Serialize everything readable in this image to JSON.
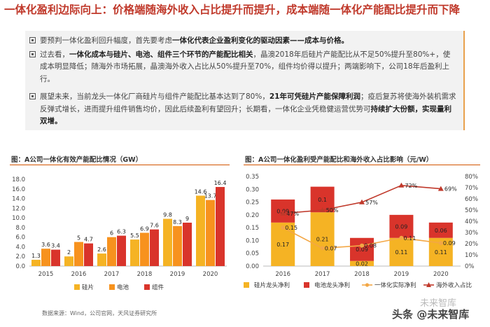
{
  "title": "一体化盈利边际向上：价格端随海外收入占比提升而提升，成本端随一体化产能配比提升而下降",
  "bullets": [
    {
      "runs": [
        {
          "t": "要预判一体化盈利回升幅度，首先要考虑",
          "b": false
        },
        {
          "t": "一体化代表企业盈利变化的驱动因素——成本与价格。",
          "b": true
        }
      ]
    },
    {
      "runs": [
        {
          "t": "过去看，",
          "b": false
        },
        {
          "t": "一体化成本与硅片、电池、组件三个环节的产能配比相关",
          "b": true
        },
        {
          "t": "，晶澳2018年后硅片产能配比从不足50%提升至80%+，使成本明显降低；随海外市场拓展，晶澳海外收入占比从50%提升至70%，组件均价得以提升；两端影响下，公司18年后盈利上行。",
          "b": false
        }
      ]
    },
    {
      "runs": [
        {
          "t": "展望未来，当前龙头一体化厂商硅片与组件产能配比基本达到了80%，",
          "b": false
        },
        {
          "t": "21年可凭硅片产能保障利润",
          "b": true
        },
        {
          "t": "；疫后复苏将使海外装机需求反弹式增长，进而提升组件销售均价，因此后续盈利有望回升；长期看，一体化企业凭稳健运营优势可",
          "b": false
        },
        {
          "t": "持续扩大份额，实现量利双增。",
          "b": true
        }
      ]
    }
  ],
  "source": "数据来源：Wind，公司官网，天风证券研究所",
  "watermark": {
    "text": "头条 @未来智库",
    "ghost": "未来智库"
  },
  "colors": {
    "title": "#c0392b",
    "wafer": "#f5b324",
    "cell": "#f7921e",
    "module": "#d9342b",
    "cost": "#f3a745",
    "line": "#c0392b"
  },
  "chart_data": [
    {
      "type": "bar",
      "title": "图：A公司一体化有效产能配比情况（GW）",
      "categories": [
        "2015",
        "2016",
        "2017",
        "2018",
        "2019",
        "2020"
      ],
      "series": [
        {
          "name": "硅片",
          "values": [
            1.3,
            2.0,
            2.6,
            5.5,
            9.8,
            14.6
          ]
        },
        {
          "name": "电池",
          "values": [
            3.6,
            5.0,
            6.0,
            6.9,
            8.3,
            13.7
          ]
        },
        {
          "name": "组件",
          "values": [
            3.4,
            4.7,
            6.3,
            7.6,
            9.0,
            16.4
          ]
        }
      ],
      "ylim": [
        0,
        18
      ],
      "yticks": [
        0.0,
        2.0,
        4.0,
        6.0,
        8.0,
        10.0,
        12.0,
        14.0,
        16.0,
        18.0
      ],
      "legend": "bottom"
    },
    {
      "type": "bar",
      "title": "图：A公司一体化盈利受产能配比和海外收入占比影响（元/W）",
      "categories": [
        "2016",
        "2017",
        "2018",
        "2019",
        "2020"
      ],
      "bar_series": [
        {
          "name": "硅片龙头净利",
          "values": [
            0.17,
            0.21,
            0.02,
            0.11,
            0.11
          ]
        },
        {
          "name": "电池龙头净利",
          "values": [
            0.09,
            0.1,
            0.09,
            0.09,
            0.06
          ]
        }
      ],
      "line_series": [
        {
          "name": "一体化实际净利",
          "axis": "left",
          "values": [
            0.15,
            0.07,
            0.08,
            0.11,
            0.09
          ]
        },
        {
          "name": "海外收入占比",
          "axis": "right",
          "values": [
            47,
            50,
            57,
            72,
            69
          ],
          "labels": [
            "47%",
            "50%",
            "57%",
            "72%",
            "69%"
          ]
        }
      ],
      "ylim": [
        0,
        0.35
      ],
      "yticks": [
        0.0,
        0.05,
        0.1,
        0.15,
        0.2,
        0.25,
        0.3,
        0.35
      ],
      "y2lim": [
        0,
        80
      ],
      "y2ticks": [
        "0%",
        "10%",
        "20%",
        "30%",
        "40%",
        "50%",
        "60%",
        "70%",
        "80%"
      ],
      "legend": "bottom"
    }
  ]
}
